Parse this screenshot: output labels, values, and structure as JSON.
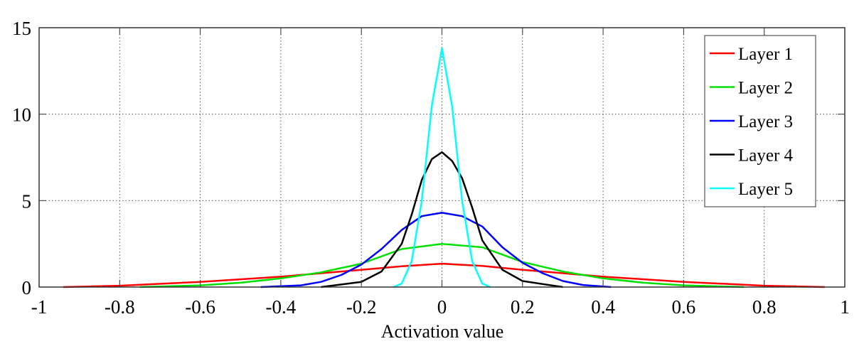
{
  "chart_data": {
    "type": "line",
    "title": "",
    "xlabel": "Activation value",
    "ylabel": "",
    "xlim": [
      -1,
      1
    ],
    "ylim": [
      0,
      15
    ],
    "xticks": [
      -1,
      -0.8,
      -0.6,
      -0.4,
      -0.2,
      0,
      0.2,
      0.4,
      0.6,
      0.8,
      1
    ],
    "xtick_labels": [
      "-1",
      "-0.8",
      "-0.6",
      "-0.4",
      "-0.2",
      "0",
      "0.2",
      "0.4",
      "0.6",
      "0.8",
      "1"
    ],
    "yticks": [
      0,
      5,
      10,
      15
    ],
    "ytick_labels": [
      "0",
      "5",
      "10",
      "15"
    ],
    "grid": true,
    "legend_position": "top-right",
    "series": [
      {
        "name": "Layer 1",
        "color": "#ff0000",
        "x": [
          -0.94,
          -0.8,
          -0.6,
          -0.4,
          -0.2,
          -0.1,
          0,
          0.1,
          0.2,
          0.4,
          0.6,
          0.8,
          0.95
        ],
        "y": [
          0,
          0.08,
          0.3,
          0.6,
          1.0,
          1.2,
          1.35,
          1.22,
          1.0,
          0.6,
          0.3,
          0.08,
          0
        ]
      },
      {
        "name": "Layer 2",
        "color": "#00e000",
        "x": [
          -0.75,
          -0.6,
          -0.5,
          -0.4,
          -0.3,
          -0.2,
          -0.1,
          0,
          0.1,
          0.2,
          0.3,
          0.4,
          0.5,
          0.6,
          0.75
        ],
        "y": [
          0,
          0.1,
          0.25,
          0.5,
          0.85,
          1.35,
          2.2,
          2.5,
          2.3,
          1.45,
          0.9,
          0.5,
          0.25,
          0.1,
          0
        ]
      },
      {
        "name": "Layer 3",
        "color": "#0000ff",
        "x": [
          -0.45,
          -0.35,
          -0.3,
          -0.25,
          -0.2,
          -0.15,
          -0.1,
          -0.05,
          0,
          0.05,
          0.1,
          0.15,
          0.2,
          0.25,
          0.3,
          0.35,
          0.42
        ],
        "y": [
          0,
          0.1,
          0.3,
          0.7,
          1.3,
          2.2,
          3.3,
          4.1,
          4.3,
          4.1,
          3.5,
          2.3,
          1.4,
          0.8,
          0.35,
          0.12,
          0
        ]
      },
      {
        "name": "Layer 4",
        "color": "#000000",
        "x": [
          -0.3,
          -0.2,
          -0.15,
          -0.1,
          -0.075,
          -0.05,
          -0.025,
          0,
          0.025,
          0.05,
          0.075,
          0.1,
          0.15,
          0.2,
          0.3
        ],
        "y": [
          0,
          0.3,
          0.9,
          2.5,
          4.2,
          6.2,
          7.4,
          7.8,
          7.3,
          6.3,
          4.6,
          2.7,
          1.0,
          0.35,
          0
        ]
      },
      {
        "name": "Layer 5",
        "color": "#00ffff",
        "x": [
          -0.12,
          -0.1,
          -0.075,
          -0.05,
          -0.025,
          0,
          0.025,
          0.05,
          0.075,
          0.1,
          0.12
        ],
        "y": [
          0,
          0.2,
          1.5,
          5,
          10.5,
          13.8,
          10.5,
          5,
          1.5,
          0.2,
          0
        ]
      }
    ]
  }
}
